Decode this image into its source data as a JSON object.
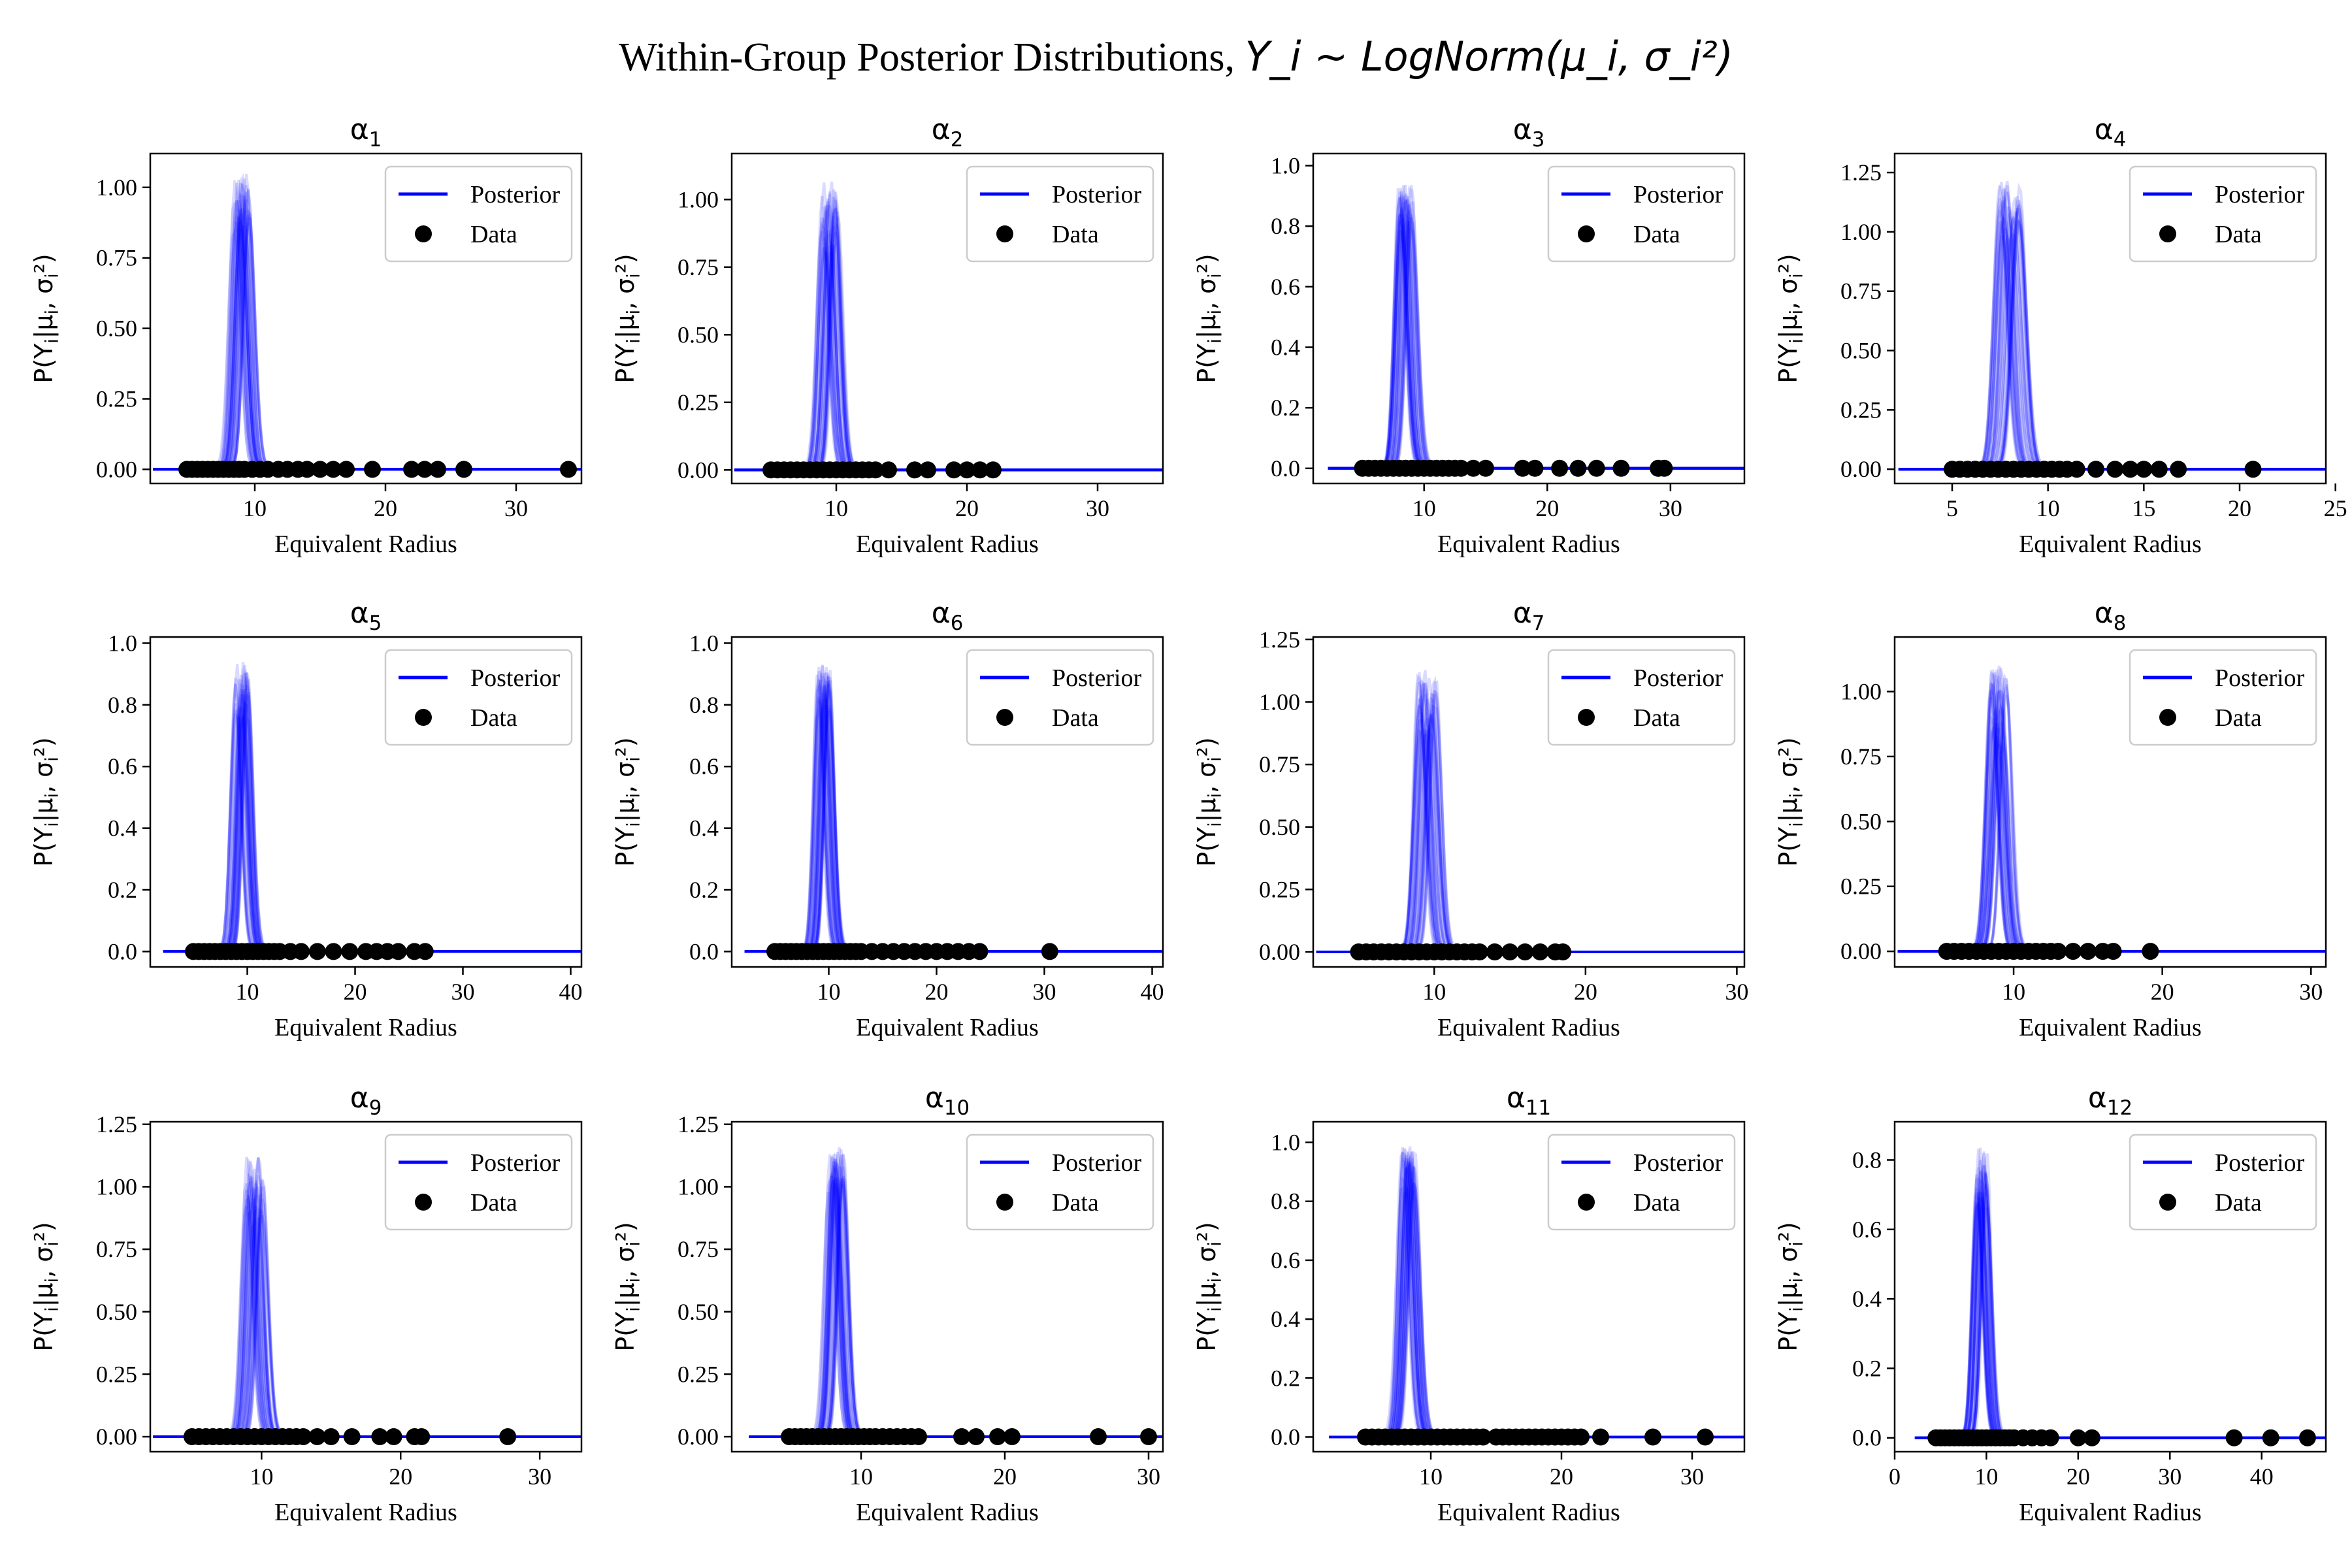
{
  "figure": {
    "title_text": "Within-Group Posterior Distributions, ",
    "title_math": "Y_i ~ LogNorm(μ_i, σ_i²)"
  },
  "chart_data": [
    {
      "type": "line",
      "title": "α_1",
      "xlabel": "Equivalent Radius",
      "ylabel": "P(Y_i|μ_i, σ_i²)",
      "xlim": [
        2,
        35
      ],
      "ylim": [
        -0.05,
        1.12
      ],
      "xticks": [
        10,
        20,
        30
      ],
      "yticks": [
        0.0,
        0.25,
        0.5,
        0.75,
        1.0
      ],
      "ytick_labels": [
        "0.00",
        "0.25",
        "0.50",
        "0.75",
        "1.00"
      ],
      "legend": {
        "position": "top-right",
        "entries": [
          "Posterior",
          "Data"
        ]
      },
      "posterior": {
        "mode": 9,
        "peak": 0.96,
        "peak_range": [
          0.8,
          1.1
        ]
      },
      "data": [
        4.8,
        5.2,
        5.6,
        6.0,
        6.4,
        6.8,
        7.2,
        7.6,
        8.0,
        8.4,
        8.8,
        9.2,
        9.8,
        10.4,
        11.0,
        11.8,
        12.5,
        13.3,
        14.0,
        15.0,
        16.0,
        17.0,
        19.0,
        22.0,
        23.0,
        24.0,
        26.0,
        34.0
      ]
    },
    {
      "type": "line",
      "title": "α_2",
      "xlabel": "Equivalent Radius",
      "ylabel": "P(Y_i|μ_i, σ_i²)",
      "xlim": [
        2,
        35
      ],
      "ylim": [
        -0.05,
        1.17
      ],
      "xticks": [
        10,
        20,
        30
      ],
      "yticks": [
        0.0,
        0.25,
        0.5,
        0.75,
        1.0
      ],
      "ytick_labels": [
        "0.00",
        "0.25",
        "0.50",
        "0.75",
        "1.00"
      ],
      "legend": {
        "position": "top-right",
        "entries": [
          "Posterior",
          "Data"
        ]
      },
      "posterior": {
        "mode": 9.5,
        "peak": 0.93,
        "peak_range": [
          0.72,
          1.13
        ]
      },
      "data": [
        5.0,
        5.5,
        6.0,
        6.5,
        7.0,
        7.5,
        8.0,
        8.5,
        9.0,
        9.5,
        10.0,
        10.5,
        11.0,
        11.5,
        12.0,
        12.5,
        13.0,
        14.0,
        16.0,
        17.0,
        19.0,
        20.0,
        21.0,
        22.0
      ]
    },
    {
      "type": "line",
      "title": "α_3",
      "xlabel": "Equivalent Radius",
      "ylabel": "P(Y_i|μ_i, σ_i²)",
      "xlim": [
        1,
        36
      ],
      "ylim": [
        -0.05,
        1.04
      ],
      "xticks": [
        10,
        20,
        30
      ],
      "yticks": [
        0.0,
        0.2,
        0.4,
        0.6,
        0.8,
        1.0
      ],
      "ytick_labels": [
        "0.0",
        "0.2",
        "0.4",
        "0.6",
        "0.8",
        "1.0"
      ],
      "legend": {
        "position": "top-right",
        "entries": [
          "Posterior",
          "Data"
        ]
      },
      "posterior": {
        "mode": 8.5,
        "peak": 0.87,
        "peak_range": [
          0.75,
          0.98
        ]
      },
      "data": [
        5.0,
        5.5,
        6.0,
        6.5,
        7.0,
        7.5,
        8.0,
        8.5,
        9.0,
        9.5,
        10.0,
        10.5,
        11.0,
        11.5,
        12.0,
        12.5,
        13.0,
        14.0,
        15.0,
        18.0,
        19.0,
        21.0,
        22.5,
        24.0,
        26.0,
        29.0,
        29.5
      ]
    },
    {
      "type": "line",
      "title": "α_4",
      "xlabel": "Equivalent Radius",
      "ylabel": "P(Y_i|μ_i, σ_i²)",
      "xlim": [
        2,
        24.5
      ],
      "ylim": [
        -0.06,
        1.33
      ],
      "xticks": [
        5,
        10,
        15,
        20,
        25
      ],
      "yticks": [
        0.0,
        0.25,
        0.5,
        0.75,
        1.0,
        1.25
      ],
      "ytick_labels": [
        "0.00",
        "0.25",
        "0.50",
        "0.75",
        "1.00",
        "1.25"
      ],
      "legend": {
        "position": "top-right",
        "entries": [
          "Posterior",
          "Data"
        ]
      },
      "posterior": {
        "mode": 8,
        "peak": 1.1,
        "peak_range": [
          0.93,
          1.27
        ]
      },
      "data": [
        5.0,
        5.4,
        5.8,
        6.2,
        6.6,
        7.0,
        7.4,
        7.8,
        8.2,
        8.6,
        9.0,
        9.4,
        9.8,
        10.2,
        10.6,
        11.0,
        11.5,
        12.5,
        13.5,
        14.3,
        15.0,
        15.8,
        16.8,
        20.7
      ]
    },
    {
      "type": "line",
      "title": "α_5",
      "xlabel": "Equivalent Radius",
      "ylabel": "P(Y_i|μ_i, σ_i²)",
      "xlim": [
        1,
        41
      ],
      "ylim": [
        -0.05,
        1.02
      ],
      "xticks": [
        10,
        20,
        30,
        40
      ],
      "yticks": [
        0.0,
        0.2,
        0.4,
        0.6,
        0.8,
        1.0
      ],
      "ytick_labels": [
        "0.0",
        "0.2",
        "0.4",
        "0.6",
        "0.8",
        "1.0"
      ],
      "legend": {
        "position": "top-right",
        "entries": [
          "Posterior",
          "Data"
        ]
      },
      "posterior": {
        "mode": 9.5,
        "peak": 0.86,
        "peak_range": [
          0.69,
          0.97
        ]
      },
      "data": [
        5.0,
        5.5,
        6.0,
        6.5,
        7.0,
        7.5,
        8.0,
        8.5,
        9.0,
        9.5,
        10.0,
        10.5,
        11.0,
        11.5,
        12.0,
        12.5,
        13.0,
        14.0,
        15.0,
        16.5,
        18.0,
        19.5,
        21.0,
        22.0,
        23.0,
        24.0,
        25.5,
        26.5
      ]
    },
    {
      "type": "line",
      "title": "α_6",
      "xlabel": "Equivalent Radius",
      "ylabel": "P(Y_i|μ_i, σ_i²)",
      "xlim": [
        1,
        41
      ],
      "ylim": [
        -0.05,
        1.02
      ],
      "xticks": [
        10,
        20,
        30,
        40
      ],
      "yticks": [
        0.0,
        0.2,
        0.4,
        0.6,
        0.8,
        1.0
      ],
      "ytick_labels": [
        "0.0",
        "0.2",
        "0.4",
        "0.6",
        "0.8",
        "1.0"
      ],
      "legend": {
        "position": "top-right",
        "entries": [
          "Posterior",
          "Data"
        ]
      },
      "posterior": {
        "mode": 9.5,
        "peak": 0.87,
        "peak_range": [
          0.75,
          0.96
        ]
      },
      "data": [
        5.0,
        5.5,
        6.0,
        6.5,
        7.0,
        7.5,
        8.0,
        8.5,
        9.0,
        9.5,
        10.0,
        10.5,
        11.0,
        11.5,
        12.0,
        12.5,
        13.0,
        14.0,
        15.0,
        16.0,
        17.0,
        18.0,
        19.0,
        20.0,
        21.0,
        22.0,
        23.0,
        24.0,
        30.5
      ]
    },
    {
      "type": "line",
      "title": "α_7",
      "xlabel": "Equivalent Radius",
      "ylabel": "P(Y_i|μ_i, σ_i²)",
      "xlim": [
        2,
        30.5
      ],
      "ylim": [
        -0.06,
        1.26
      ],
      "xticks": [
        10,
        20,
        30
      ],
      "yticks": [
        0.0,
        0.25,
        0.5,
        0.75,
        1.0,
        1.25
      ],
      "ytick_labels": [
        "0.00",
        "0.25",
        "0.50",
        "0.75",
        "1.00",
        "1.25"
      ],
      "legend": {
        "position": "top-right",
        "entries": [
          "Posterior",
          "Data"
        ]
      },
      "posterior": {
        "mode": 9.5,
        "peak": 1.0,
        "peak_range": [
          0.8,
          1.19
        ]
      },
      "data": [
        5.0,
        5.5,
        6.0,
        6.5,
        7.0,
        7.5,
        8.0,
        8.5,
        9.0,
        9.5,
        10.0,
        10.5,
        11.0,
        11.5,
        12.0,
        12.5,
        13.0,
        14.0,
        15.0,
        16.0,
        17.0,
        18.0,
        18.5
      ]
    },
    {
      "type": "line",
      "title": "α_8",
      "xlabel": "Equivalent Radius",
      "ylabel": "P(Y_i|μ_i, σ_i²)",
      "xlim": [
        2,
        31
      ],
      "ylim": [
        -0.06,
        1.21
      ],
      "xticks": [
        10,
        20,
        30
      ],
      "yticks": [
        0.0,
        0.25,
        0.5,
        0.75,
        1.0
      ],
      "ytick_labels": [
        "0.00",
        "0.25",
        "0.50",
        "0.75",
        "1.00"
      ],
      "legend": {
        "position": "top-right",
        "entries": [
          "Posterior",
          "Data"
        ]
      },
      "posterior": {
        "mode": 9,
        "peak": 0.97,
        "peak_range": [
          0.7,
          1.16
        ]
      },
      "data": [
        5.5,
        6.0,
        6.5,
        7.0,
        7.5,
        8.0,
        8.5,
        9.0,
        9.5,
        10.0,
        10.5,
        11.0,
        11.5,
        12.0,
        12.5,
        13.0,
        14.0,
        15.0,
        16.0,
        16.7,
        19.2
      ]
    },
    {
      "type": "line",
      "title": "α_9",
      "xlabel": "Equivalent Radius",
      "ylabel": "P(Y_i|μ_i, σ_i²)",
      "xlim": [
        2,
        33
      ],
      "ylim": [
        -0.06,
        1.26
      ],
      "xticks": [
        10,
        20,
        30
      ],
      "yticks": [
        0.0,
        0.25,
        0.5,
        0.75,
        1.0,
        1.25
      ],
      "ytick_labels": [
        "0.00",
        "0.25",
        "0.50",
        "0.75",
        "1.00",
        "1.25"
      ],
      "legend": {
        "position": "top-right",
        "entries": [
          "Posterior",
          "Data"
        ]
      },
      "posterior": {
        "mode": 9.5,
        "peak": 0.98,
        "peak_range": [
          0.78,
          1.22
        ]
      },
      "data": [
        5.0,
        5.5,
        6.0,
        6.5,
        7.0,
        7.5,
        8.0,
        8.5,
        9.0,
        9.5,
        10.0,
        10.5,
        11.0,
        11.5,
        12.0,
        12.5,
        13.0,
        14.0,
        15.0,
        16.5,
        18.5,
        19.5,
        21.0,
        21.5,
        27.7
      ]
    },
    {
      "type": "line",
      "title": "α_10",
      "xlabel": "Equivalent Radius",
      "ylabel": "P(Y_i|μ_i, σ_i²)",
      "xlim": [
        1,
        31
      ],
      "ylim": [
        -0.06,
        1.26
      ],
      "xticks": [
        10,
        20,
        30
      ],
      "yticks": [
        0.0,
        0.25,
        0.5,
        0.75,
        1.0,
        1.25
      ],
      "ytick_labels": [
        "0.00",
        "0.25",
        "0.50",
        "0.75",
        "1.00",
        "1.25"
      ],
      "legend": {
        "position": "top-right",
        "entries": [
          "Posterior",
          "Data"
        ]
      },
      "posterior": {
        "mode": 8.3,
        "peak": 1.1,
        "peak_range": [
          0.93,
          1.2
        ]
      },
      "data": [
        5.0,
        5.4,
        5.8,
        6.2,
        6.6,
        7.0,
        7.4,
        7.8,
        8.2,
        8.6,
        9.0,
        9.4,
        9.8,
        10.2,
        10.6,
        11.0,
        11.5,
        12.0,
        12.5,
        13.0,
        13.5,
        14.0,
        17.0,
        18.0,
        19.5,
        20.5,
        26.5,
        30.0
      ]
    },
    {
      "type": "line",
      "title": "α_11",
      "xlabel": "Equivalent Radius",
      "ylabel": "P(Y_i|μ_i, σ_i²)",
      "xlim": [
        1,
        34
      ],
      "ylim": [
        -0.05,
        1.07
      ],
      "xticks": [
        10,
        20,
        30
      ],
      "yticks": [
        0.0,
        0.2,
        0.4,
        0.6,
        0.8,
        1.0
      ],
      "ytick_labels": [
        "0.0",
        "0.2",
        "0.4",
        "0.6",
        "0.8",
        "1.0"
      ],
      "legend": {
        "position": "top-right",
        "entries": [
          "Posterior",
          "Data"
        ]
      },
      "posterior": {
        "mode": 8.3,
        "peak": 0.92,
        "peak_range": [
          0.8,
          1.02
        ]
      },
      "data": [
        5.0,
        5.5,
        6.0,
        6.5,
        7.0,
        7.5,
        8.0,
        8.5,
        9.0,
        9.5,
        10.0,
        10.5,
        11.0,
        11.5,
        12.0,
        12.5,
        13.0,
        13.5,
        14.0,
        15.0,
        15.5,
        16.0,
        16.5,
        17.0,
        17.5,
        18.0,
        18.5,
        19.0,
        19.5,
        20.0,
        20.5,
        21.0,
        21.5,
        23.0,
        27.0,
        31.0
      ]
    },
    {
      "type": "line",
      "title": "α_12",
      "xlabel": "Equivalent Radius",
      "ylabel": "P(Y_i|μ_i, σ_i²)",
      "xlim": [
        0,
        47
      ],
      "ylim": [
        -0.04,
        0.91
      ],
      "xticks": [
        0,
        10,
        20,
        30,
        40
      ],
      "yticks": [
        0.0,
        0.2,
        0.4,
        0.6,
        0.8
      ],
      "ytick_labels": [
        "0.0",
        "0.2",
        "0.4",
        "0.6",
        "0.8"
      ],
      "legend": {
        "position": "top-right",
        "entries": [
          "Posterior",
          "Data"
        ]
      },
      "posterior": {
        "mode": 9.5,
        "peak": 0.77,
        "peak_range": [
          0.62,
          0.87
        ]
      },
      "data": [
        4.5,
        5.0,
        5.5,
        6.0,
        6.5,
        7.0,
        7.5,
        8.0,
        8.5,
        9.0,
        9.5,
        10.0,
        10.5,
        11.0,
        11.5,
        12.0,
        12.5,
        13.0,
        14.0,
        15.0,
        16.0,
        17.0,
        20.0,
        21.5,
        37.0,
        41.0,
        45.0
      ]
    }
  ],
  "colors": {
    "posterior": "#0000ff",
    "data": "#000000",
    "axes": "#000000",
    "legend_border": "#cccccc"
  }
}
